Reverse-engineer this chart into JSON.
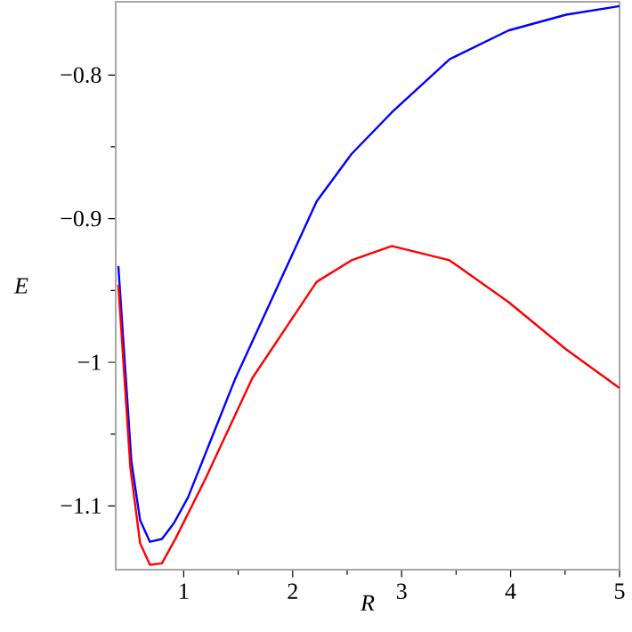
{
  "chart_data": {
    "type": "line",
    "xlabel": "R",
    "ylabel": "E",
    "xlim": [
      0.376,
      5
    ],
    "ylim": [
      -1.1444,
      -0.749
    ],
    "xticks": [
      1,
      2,
      3,
      4,
      5
    ],
    "yticks": [
      {
        "value": -1.1,
        "label": "−1.1"
      },
      {
        "value": -1,
        "label": "−1"
      },
      {
        "value": -0.9,
        "label": "−0.9"
      },
      {
        "value": -0.8,
        "label": "−0.8"
      }
    ],
    "grid": false,
    "marker": "none",
    "line_style": "solid",
    "series": [
      {
        "color": "#0000ff",
        "x": [
          0.4,
          0.52,
          0.6,
          0.69,
          0.8,
          0.91,
          1.04,
          1.47,
          2.22,
          2.54,
          2.91,
          3.44,
          3.98,
          4.51,
          5.0
        ],
        "values": [
          -0.933,
          -1.069,
          -1.11,
          -1.125,
          -1.123,
          -1.112,
          -1.094,
          -1.012,
          -0.888,
          -0.855,
          -0.826,
          -0.789,
          -0.769,
          -0.758,
          -0.752
        ]
      },
      {
        "color": "#ff0000",
        "x": [
          0.4,
          0.51,
          0.6,
          0.69,
          0.8,
          0.93,
          1.2,
          1.63,
          2.22,
          2.54,
          2.91,
          3.44,
          3.98,
          4.51,
          5.0
        ],
        "values": [
          -0.946,
          -1.073,
          -1.126,
          -1.141,
          -1.14,
          -1.122,
          -1.081,
          -1.011,
          -0.944,
          -0.929,
          -0.919,
          -0.929,
          -0.958,
          -0.991,
          -1.018
        ]
      }
    ]
  }
}
